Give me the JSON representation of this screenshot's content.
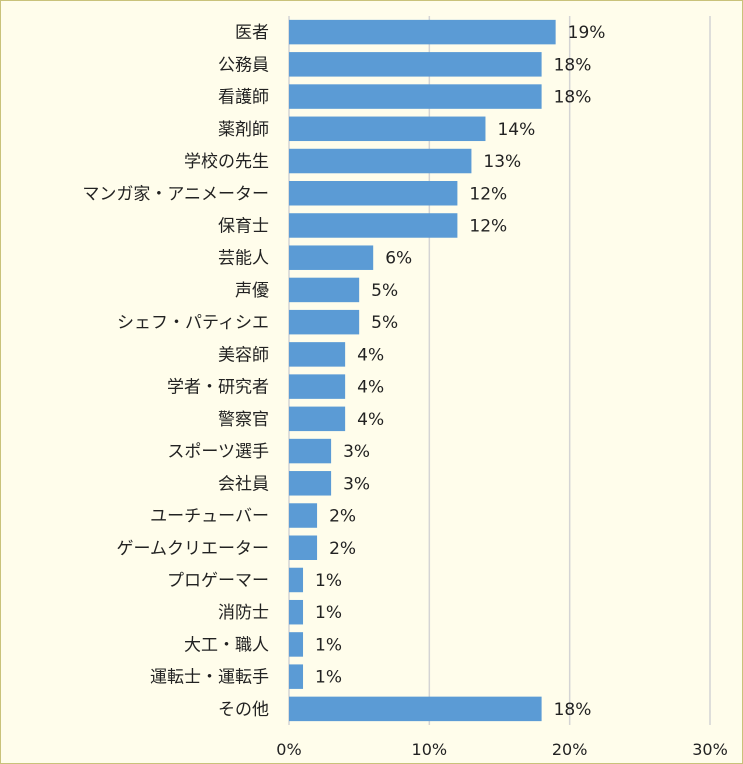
{
  "chart_data": {
    "type": "bar",
    "orientation": "horizontal",
    "categories": [
      "医者",
      "公務員",
      "看護師",
      "薬剤師",
      "学校の先生",
      "マンガ家・アニメーター",
      "保育士",
      "芸能人",
      "声優",
      "シェフ・パティシエ",
      "美容師",
      "学者・研究者",
      "警察官",
      "スポーツ選手",
      "会社員",
      "ユーチューバー",
      "ゲームクリエーター",
      "プロゲーマー",
      "消防士",
      "大工・職人",
      "運転士・運転手",
      "その他"
    ],
    "values": [
      19,
      18,
      18,
      14,
      13,
      12,
      12,
      6,
      5,
      5,
      4,
      4,
      4,
      3,
      3,
      2,
      2,
      1,
      1,
      1,
      1,
      18
    ],
    "bar_values": [
      19,
      18,
      18,
      14,
      13,
      12,
      12,
      6,
      5,
      5,
      4,
      4,
      4,
      3,
      3,
      2,
      2,
      1,
      1,
      1,
      1,
      18
    ],
    "data_labels": [
      "19%",
      "18%",
      "18%",
      "14%",
      "13%",
      "12%",
      "12%",
      "6%",
      "5%",
      "5%",
      "4%",
      "4%",
      "4%",
      "3%",
      "3%",
      "2%",
      "2%",
      "1%",
      "1%",
      "1%",
      "1%",
      "18%"
    ],
    "x_ticks": [
      "0%",
      "10%",
      "20%",
      "30%"
    ],
    "xlim": [
      0,
      30
    ],
    "grid": true,
    "title": "",
    "xlabel": "",
    "ylabel": ""
  },
  "colors": {
    "bar": "#5b9bd5",
    "background": "#fffdeb",
    "border": "#c9c27a",
    "grid": "#d4d4d4"
  }
}
